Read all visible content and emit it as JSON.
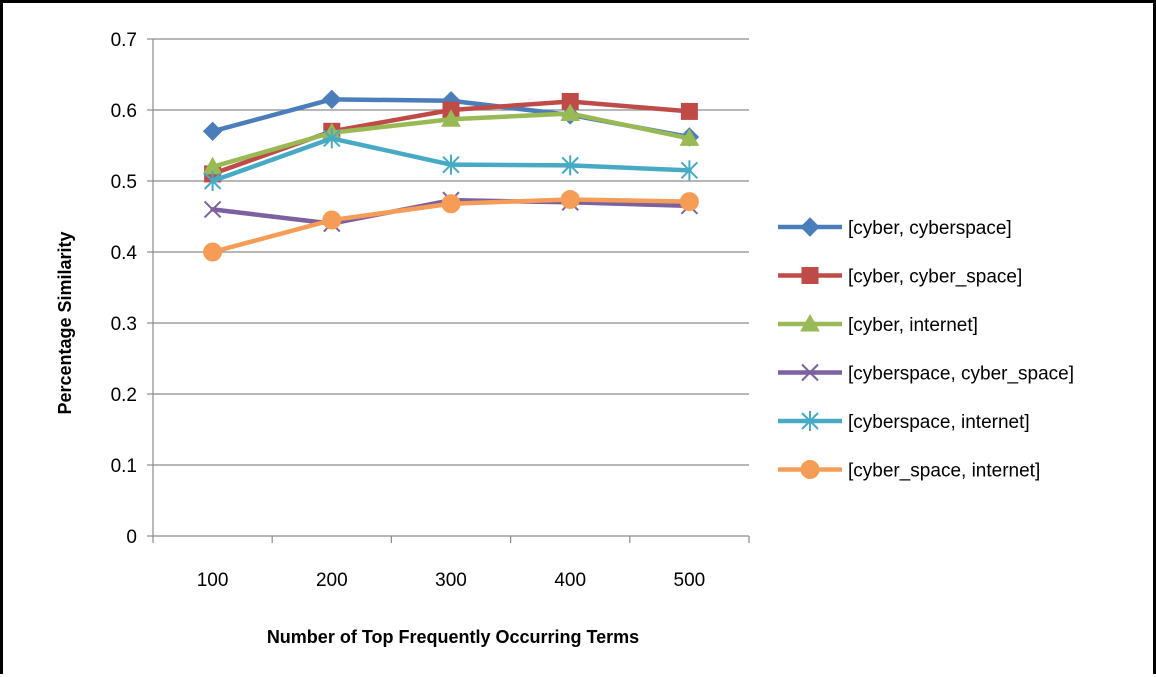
{
  "chart_data": {
    "type": "line",
    "title": "",
    "xlabel": "Number of Top Frequently Occurring Terms",
    "ylabel": "Percentage Similarity",
    "categories": [
      "100",
      "200",
      "300",
      "400",
      "500"
    ],
    "ylim": [
      0,
      0.7
    ],
    "yticks": [
      "0",
      "0.1",
      "0.2",
      "0.3",
      "0.4",
      "0.5",
      "0.6",
      "0.7"
    ],
    "grid": "horizontal",
    "legend_position": "right",
    "series": [
      {
        "name": "[cyber, cyberspace]",
        "color": "#4a7ebb",
        "marker": "diamond",
        "values": [
          0.57,
          0.615,
          0.613,
          0.593,
          0.562
        ]
      },
      {
        "name": "[cyber, cyber_space]",
        "color": "#be4b48",
        "marker": "square",
        "values": [
          0.51,
          0.57,
          0.6,
          0.612,
          0.598
        ]
      },
      {
        "name": "[cyber, internet]",
        "color": "#98b954",
        "marker": "triangle",
        "values": [
          0.52,
          0.568,
          0.587,
          0.595,
          0.56
        ]
      },
      {
        "name": "[cyberspace, cyber_space]",
        "color": "#7d60a0",
        "marker": "x",
        "values": [
          0.46,
          0.44,
          0.473,
          0.47,
          0.465
        ]
      },
      {
        "name": "[cyberspace, internet]",
        "color": "#46aac5",
        "marker": "star",
        "values": [
          0.5,
          0.56,
          0.523,
          0.522,
          0.515
        ]
      },
      {
        "name": "[cyber_space, internet]",
        "color": "#f59d56",
        "marker": "circle",
        "values": [
          0.4,
          0.445,
          0.468,
          0.474,
          0.471
        ]
      }
    ]
  }
}
